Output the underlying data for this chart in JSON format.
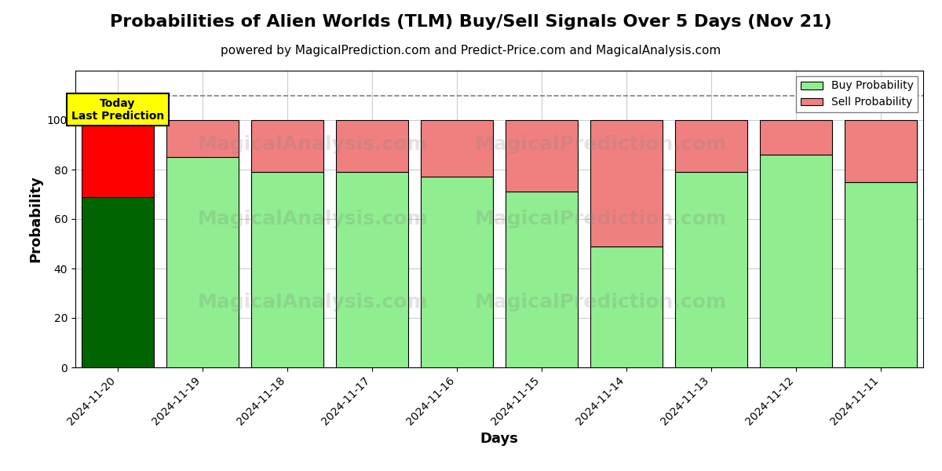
{
  "title": "Probabilities of Alien Worlds (TLM) Buy/Sell Signals Over 5 Days (Nov 21)",
  "subtitle": "powered by MagicalPrediction.com and Predict-Price.com and MagicalAnalysis.com",
  "xlabel": "Days",
  "ylabel": "Probability",
  "dates": [
    "2024-11-20",
    "2024-11-19",
    "2024-11-18",
    "2024-11-17",
    "2024-11-16",
    "2024-11-15",
    "2024-11-14",
    "2024-11-13",
    "2024-11-12",
    "2024-11-11"
  ],
  "buy_values": [
    69,
    85,
    79,
    79,
    77,
    71,
    49,
    79,
    86,
    75
  ],
  "sell_values": [
    31,
    15,
    21,
    21,
    23,
    29,
    51,
    21,
    14,
    25
  ],
  "today_buy_color": "#006400",
  "today_sell_color": "#ff0000",
  "buy_color": "#90EE90",
  "sell_color": "#F08080",
  "today_label_bg": "#FFFF00",
  "today_label_text": "Today\nLast Prediction",
  "legend_buy": "Buy Probability",
  "legend_sell": "Sell Probability",
  "ylim": [
    0,
    120
  ],
  "yticks": [
    0,
    20,
    40,
    60,
    80,
    100
  ],
  "dashed_line_y": 110,
  "watermark_texts": [
    "MagicalAnalysis.com",
    "MagicalPrediction.com"
  ],
  "background_color": "#ffffff",
  "grid_color": "#cccccc",
  "title_fontsize": 16,
  "subtitle_fontsize": 11,
  "axis_label_fontsize": 13
}
